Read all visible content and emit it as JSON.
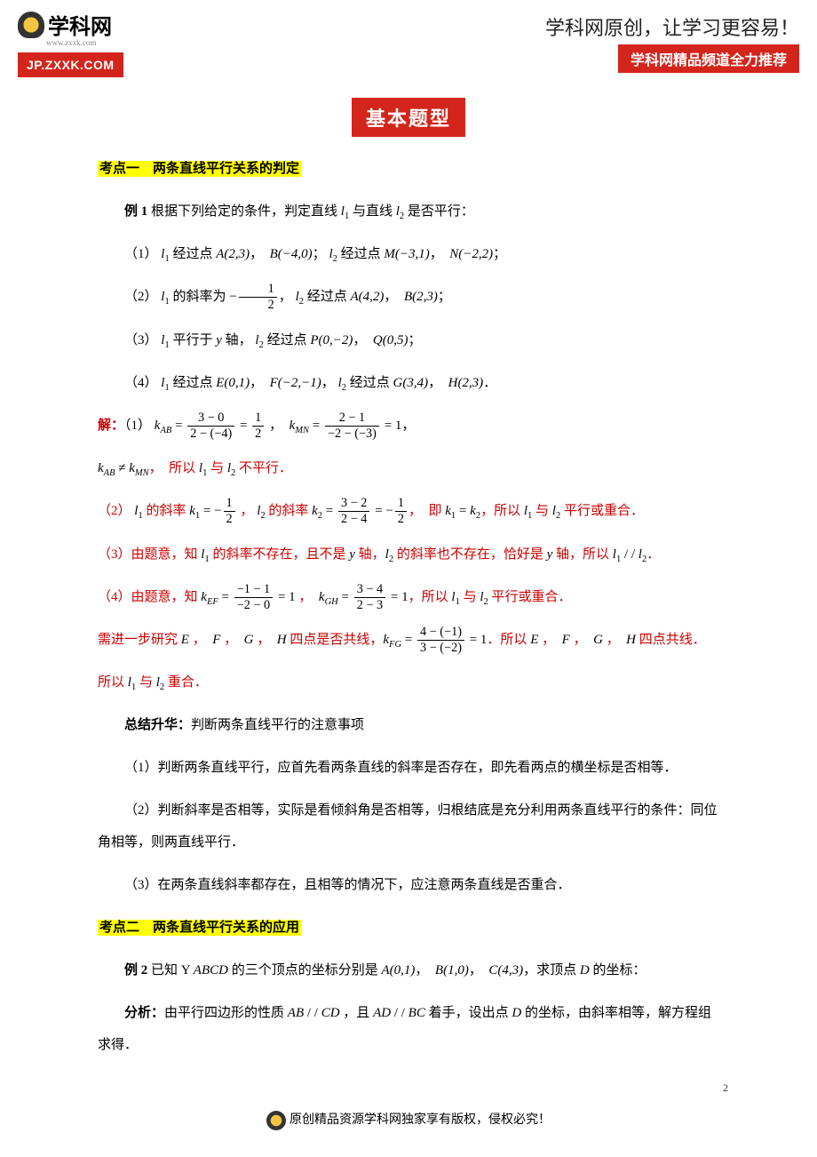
{
  "header": {
    "logo_main": "学科网",
    "logo_sub": "www.zxxk.com",
    "logo_badge": "JP.ZXXK.COM",
    "calligraphy": "学科网原创，让学习更容易！",
    "banner": "学科网精品频道全力推荐"
  },
  "title": "基本题型",
  "section1_head": "考点一　两条直线平行关系的判定",
  "ex1_label": "例 1",
  "ex1_stem": " 根据下列给定的条件，判定直线 ",
  "ex1_stem_mid": " 与直线 ",
  "ex1_stem_end": " 是否平行：",
  "item1": "（1）",
  "item1_a": " 经过点 ",
  "item1_b": "，",
  "item1_c": "；",
  "item1_d": " 经过点 ",
  "item2": "（2）",
  "item2_a": " 的斜率为 ",
  "item2_b": "，",
  "item2_c": " 经过点 ",
  "item3": "（3）",
  "item3_a": " 平行于 ",
  "item3_b": " 轴，",
  "item3_c": " 经过点 ",
  "item4": "（4）",
  "item4_a": " 经过点 ",
  "sol_label": "解：",
  "sol1_a": "（1）",
  "sol1_tail": "，",
  "sol1_line2": "，　所以 ",
  "sol1_line2_end": " 不平行．",
  "sol2_a": "（2）",
  "sol2_b": " 的斜率 ",
  "sol2_c": " 的斜率 ",
  "sol2_d": "，　即 ",
  "sol2_e": "，所以 ",
  "sol2_f": " 平行或重合．",
  "sol3": "（3）由题意，知 ",
  "sol3_b": " 的斜率不存在，且不是 ",
  "sol3_c": " 轴，",
  "sol3_d": " 的斜率也不存在，恰好是 ",
  "sol3_e": " 轴，所以 ",
  "sol3_f": "．",
  "sol4": "（4）由题意，知 ",
  "sol4_b": "，所以 ",
  "sol4_c": " 平行或重合．",
  "sol4_ext_a": "需进一步研究 ",
  "sol4_ext_b": " 四点是否共线，",
  "sol4_ext_c": "．所以 ",
  "sol4_ext_d": " 四点共线．",
  "sol4_final": "所以 ",
  "sol4_final_end": " 重合．",
  "summary_head": "总结升华：",
  "summary_head_text": "判断两条直线平行的注意事项",
  "summary1": "（1）判断两条直线平行，应首先看两条直线的斜率是否存在，即先看两点的横坐标是否相等．",
  "summary2": "（2）判断斜率是否相等，实际是看倾斜角是否相等，归根结底是充分利用两条直线平行的条件：同位角相等，则两直线平行．",
  "summary3": "（3）在两条直线斜率都存在，且相等的情况下，应注意两条直线是否重合．",
  "section2_head": "考点二　两条直线平行关系的应用",
  "ex2_label": "例 2",
  "ex2_stem_a": " 已知 Y ",
  "ex2_stem_b": " 的三个顶点的坐标分别是 ",
  "ex2_stem_c": "，",
  "ex2_stem_d": "，求顶点 ",
  "ex2_stem_e": " 的坐标：",
  "analysis_label": "分析：",
  "analysis_text_a": "由平行四边形的性质 ",
  "analysis_text_b": " ，且 ",
  "analysis_text_c": " 着手，设出点 ",
  "analysis_text_d": " 的坐标，由斜率相等，解方程组求得．",
  "footer_text": "原创精品资源学科网独家享有版权，侵权必究！",
  "page_num": "2",
  "pts": {
    "A23": "A(2,3)",
    "Bm40": "B(−4,0)",
    "Mm31": "M(−3,1)",
    "Nm22": "N(−2,2)",
    "A42": "A(4,2)",
    "B23": "B(2,3)",
    "P0m2": "P(0,−2)",
    "Q05": "Q(0,5)",
    "E01": "E(0,1)",
    "Fm2m1": "F(−2,−1)",
    "G34": "G(3,4)",
    "H23": "H(2,3)",
    "A01": "A(0,1)",
    "B10": "B(1,0)",
    "C43": "C(4,3)"
  }
}
